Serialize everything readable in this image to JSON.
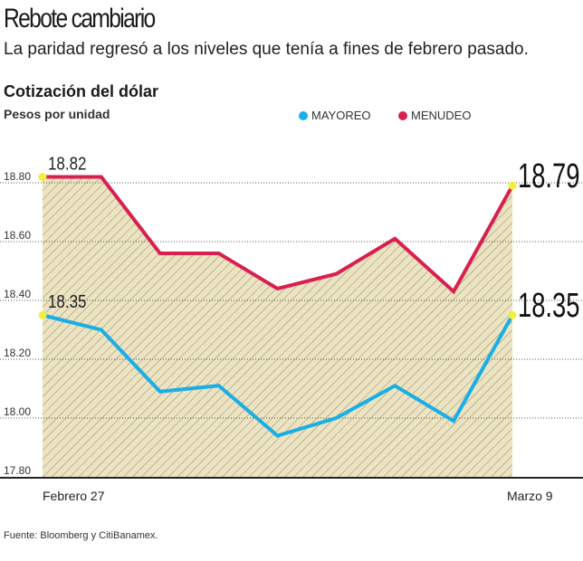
{
  "header": {
    "title": "Rebote cambiario",
    "subtitle": "La paridad regresó a los niveles que tenía a fines de febrero pasado."
  },
  "footer": {
    "source": "Fuente: Bloomberg y CitiBanamex."
  },
  "chart_data": {
    "type": "line",
    "title": "Cotización del dólar",
    "ylabel": "Pesos por unidad",
    "xlabel": "",
    "ylim": [
      17.8,
      18.8
    ],
    "yticks": [
      "18.80",
      "18.60",
      "18.40",
      "18.20",
      "18.00",
      "17.80"
    ],
    "ytick_values": [
      18.8,
      18.6,
      18.4,
      18.2,
      18.0,
      17.8
    ],
    "x_labels": {
      "first": "Febrero 27",
      "last": "Marzo 9"
    },
    "grid": true,
    "legend_position": "top",
    "series": [
      {
        "name": "MAYOREO",
        "color": "#1aaee6",
        "values": [
          18.35,
          18.3,
          18.09,
          18.11,
          17.94,
          18.0,
          18.11,
          17.99,
          18.35
        ],
        "start_label": "18.35",
        "end_label": "18.35"
      },
      {
        "name": "MENUDEO",
        "color": "#d8204f",
        "values": [
          18.82,
          18.82,
          18.56,
          18.56,
          18.44,
          18.49,
          18.61,
          18.43,
          18.79
        ],
        "start_label": "18.82",
        "end_label": "18.79"
      }
    ],
    "fill_color": "#ece3c1",
    "marker_color": "#f2ef3a"
  }
}
